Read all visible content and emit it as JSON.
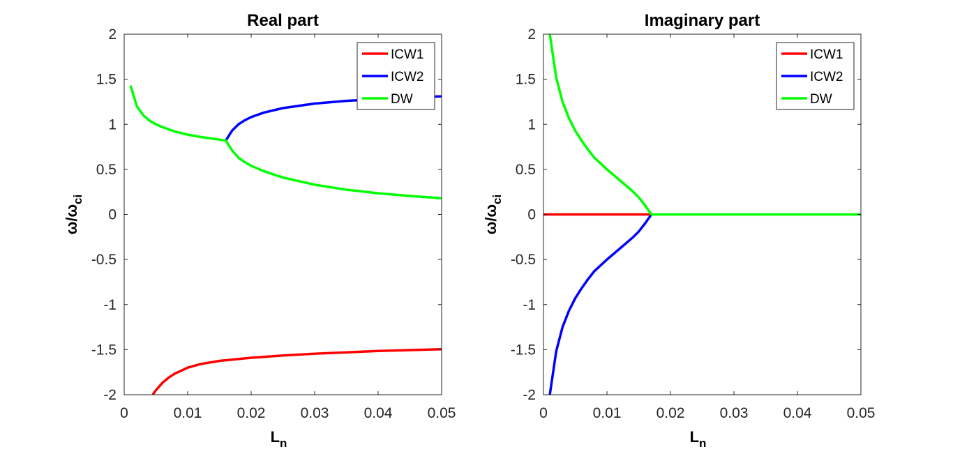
{
  "figure": {
    "background": "#ffffff"
  },
  "chart_data": [
    {
      "type": "line",
      "title": "Real part",
      "xlabel": "L_n",
      "ylabel": "ω/ω_ci",
      "xlim": [
        0,
        0.05
      ],
      "ylim": [
        -2,
        2
      ],
      "xticks": [
        0,
        0.01,
        0.02,
        0.03,
        0.04,
        0.05
      ],
      "xtick_labels": [
        "0",
        "0.01",
        "0.02",
        "0.03",
        "0.04",
        "0.05"
      ],
      "yticks": [
        2,
        1.5,
        1,
        0.5,
        0,
        -0.5,
        -1,
        -1.5,
        -2
      ],
      "ytick_labels": [
        "2",
        "1.5",
        "1",
        "0.5",
        "0",
        "-0.5",
        "-1",
        "-1.5",
        "-2"
      ],
      "legend": {
        "position": "top-right",
        "entries": [
          "ICW1",
          "ICW2",
          "DW"
        ]
      },
      "grid": false,
      "series": [
        {
          "name": "ICW1",
          "color": "#ff0000",
          "points": [
            [
              0.0045,
              -2.0
            ],
            [
              0.005,
              -1.95
            ],
            [
              0.006,
              -1.87
            ],
            [
              0.007,
              -1.81
            ],
            [
              0.008,
              -1.765
            ],
            [
              0.01,
              -1.7
            ],
            [
              0.012,
              -1.66
            ],
            [
              0.015,
              -1.625
            ],
            [
              0.02,
              -1.59
            ],
            [
              0.025,
              -1.565
            ],
            [
              0.03,
              -1.545
            ],
            [
              0.035,
              -1.53
            ],
            [
              0.04,
              -1.515
            ],
            [
              0.045,
              -1.505
            ],
            [
              0.05,
              -1.495
            ]
          ]
        },
        {
          "name": "ICW2",
          "color": "#0000ff",
          "points": [
            [
              0.016,
              0.82
            ],
            [
              0.017,
              0.93
            ],
            [
              0.018,
              1.0
            ],
            [
              0.019,
              1.045
            ],
            [
              0.02,
              1.08
            ],
            [
              0.022,
              1.13
            ],
            [
              0.025,
              1.18
            ],
            [
              0.03,
              1.23
            ],
            [
              0.035,
              1.26
            ],
            [
              0.04,
              1.28
            ],
            [
              0.045,
              1.3
            ],
            [
              0.05,
              1.31
            ]
          ]
        },
        {
          "name": "DW",
          "color": "#00ff00",
          "points": [
            [
              0.001,
              1.43
            ],
            [
              0.002,
              1.2
            ],
            [
              0.003,
              1.1
            ],
            [
              0.004,
              1.04
            ],
            [
              0.005,
              1.0
            ],
            [
              0.006,
              0.97
            ],
            [
              0.008,
              0.92
            ],
            [
              0.01,
              0.885
            ],
            [
              0.012,
              0.86
            ],
            [
              0.014,
              0.84
            ],
            [
              0.016,
              0.82
            ],
            [
              0.017,
              0.71
            ],
            [
              0.018,
              0.63
            ],
            [
              0.019,
              0.58
            ],
            [
              0.02,
              0.54
            ],
            [
              0.022,
              0.48
            ],
            [
              0.025,
              0.41
            ],
            [
              0.03,
              0.33
            ],
            [
              0.035,
              0.275
            ],
            [
              0.04,
              0.235
            ],
            [
              0.045,
              0.205
            ],
            [
              0.05,
              0.18
            ]
          ]
        }
      ]
    },
    {
      "type": "line",
      "title": "Imaginary part",
      "xlabel": "L_n",
      "ylabel": "ω/ω_ci",
      "xlim": [
        0,
        0.05
      ],
      "ylim": [
        -2,
        2
      ],
      "xticks": [
        0,
        0.01,
        0.02,
        0.03,
        0.04,
        0.05
      ],
      "xtick_labels": [
        "0",
        "0.01",
        "0.02",
        "0.03",
        "0.04",
        "0.05"
      ],
      "yticks": [
        2,
        1.5,
        1,
        0.5,
        0,
        -0.5,
        -1,
        -1.5,
        -2
      ],
      "ytick_labels": [
        "2",
        "1.5",
        "1",
        "0.5",
        "0",
        "-0.5",
        "-1",
        "-1.5",
        "-2"
      ],
      "legend": {
        "position": "top-right",
        "entries": [
          "ICW1",
          "ICW2",
          "DW"
        ]
      },
      "grid": false,
      "series": [
        {
          "name": "ICW1",
          "color": "#ff0000",
          "points": [
            [
              0.0,
              0.0
            ],
            [
              0.017,
              0.0
            ]
          ]
        },
        {
          "name": "ICW2",
          "color": "#0000ff",
          "points": [
            [
              0.001,
              -2.0
            ],
            [
              0.002,
              -1.52
            ],
            [
              0.003,
              -1.25
            ],
            [
              0.004,
              -1.07
            ],
            [
              0.005,
              -0.93
            ],
            [
              0.006,
              -0.82
            ],
            [
              0.007,
              -0.72
            ],
            [
              0.008,
              -0.63
            ],
            [
              0.01,
              -0.5
            ],
            [
              0.012,
              -0.38
            ],
            [
              0.014,
              -0.26
            ],
            [
              0.015,
              -0.19
            ],
            [
              0.016,
              -0.1
            ],
            [
              0.017,
              0.0
            ]
          ]
        },
        {
          "name": "DW",
          "color": "#00ff00",
          "points": [
            [
              0.001,
              2.0
            ],
            [
              0.002,
              1.52
            ],
            [
              0.003,
              1.25
            ],
            [
              0.004,
              1.07
            ],
            [
              0.005,
              0.93
            ],
            [
              0.006,
              0.82
            ],
            [
              0.007,
              0.72
            ],
            [
              0.008,
              0.63
            ],
            [
              0.01,
              0.5
            ],
            [
              0.012,
              0.38
            ],
            [
              0.014,
              0.26
            ],
            [
              0.015,
              0.19
            ],
            [
              0.016,
              0.1
            ],
            [
              0.017,
              0.0
            ],
            [
              0.05,
              0.0
            ]
          ]
        }
      ]
    }
  ]
}
